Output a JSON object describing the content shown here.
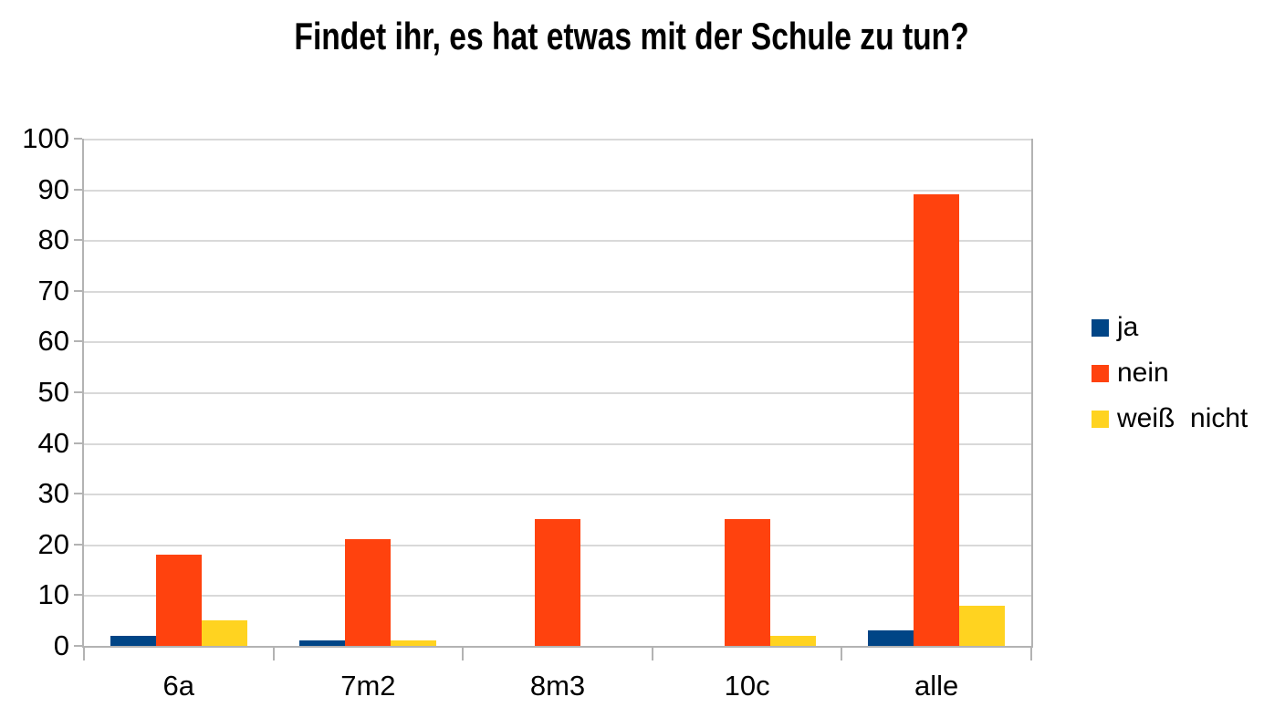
{
  "chart_data": {
    "type": "bar",
    "title": "Findet ihr, es hat etwas mit der Schule zu tun?",
    "categories": [
      "6a",
      "7m2",
      "8m3",
      "10c",
      "alle"
    ],
    "series": [
      {
        "name": "ja",
        "color": "#004586",
        "values": [
          2,
          1,
          0,
          0,
          3
        ]
      },
      {
        "name": "nein",
        "color": "#FF420E",
        "values": [
          18,
          21,
          25,
          25,
          89
        ]
      },
      {
        "name": "weiß  nicht",
        "color": "#FFD320",
        "values": [
          5,
          1,
          0,
          2,
          8
        ]
      }
    ],
    "xlabel": "",
    "ylabel": "",
    "ylim": [
      0,
      100
    ],
    "yticks": [
      0,
      10,
      20,
      30,
      40,
      50,
      60,
      70,
      80,
      90,
      100
    ],
    "grid": true,
    "legend_position": "right",
    "gridline_color": "#d9d9d9",
    "axis_color": "#b3b3b3",
    "text_color": "#000000",
    "background_color": "#ffffff"
  }
}
